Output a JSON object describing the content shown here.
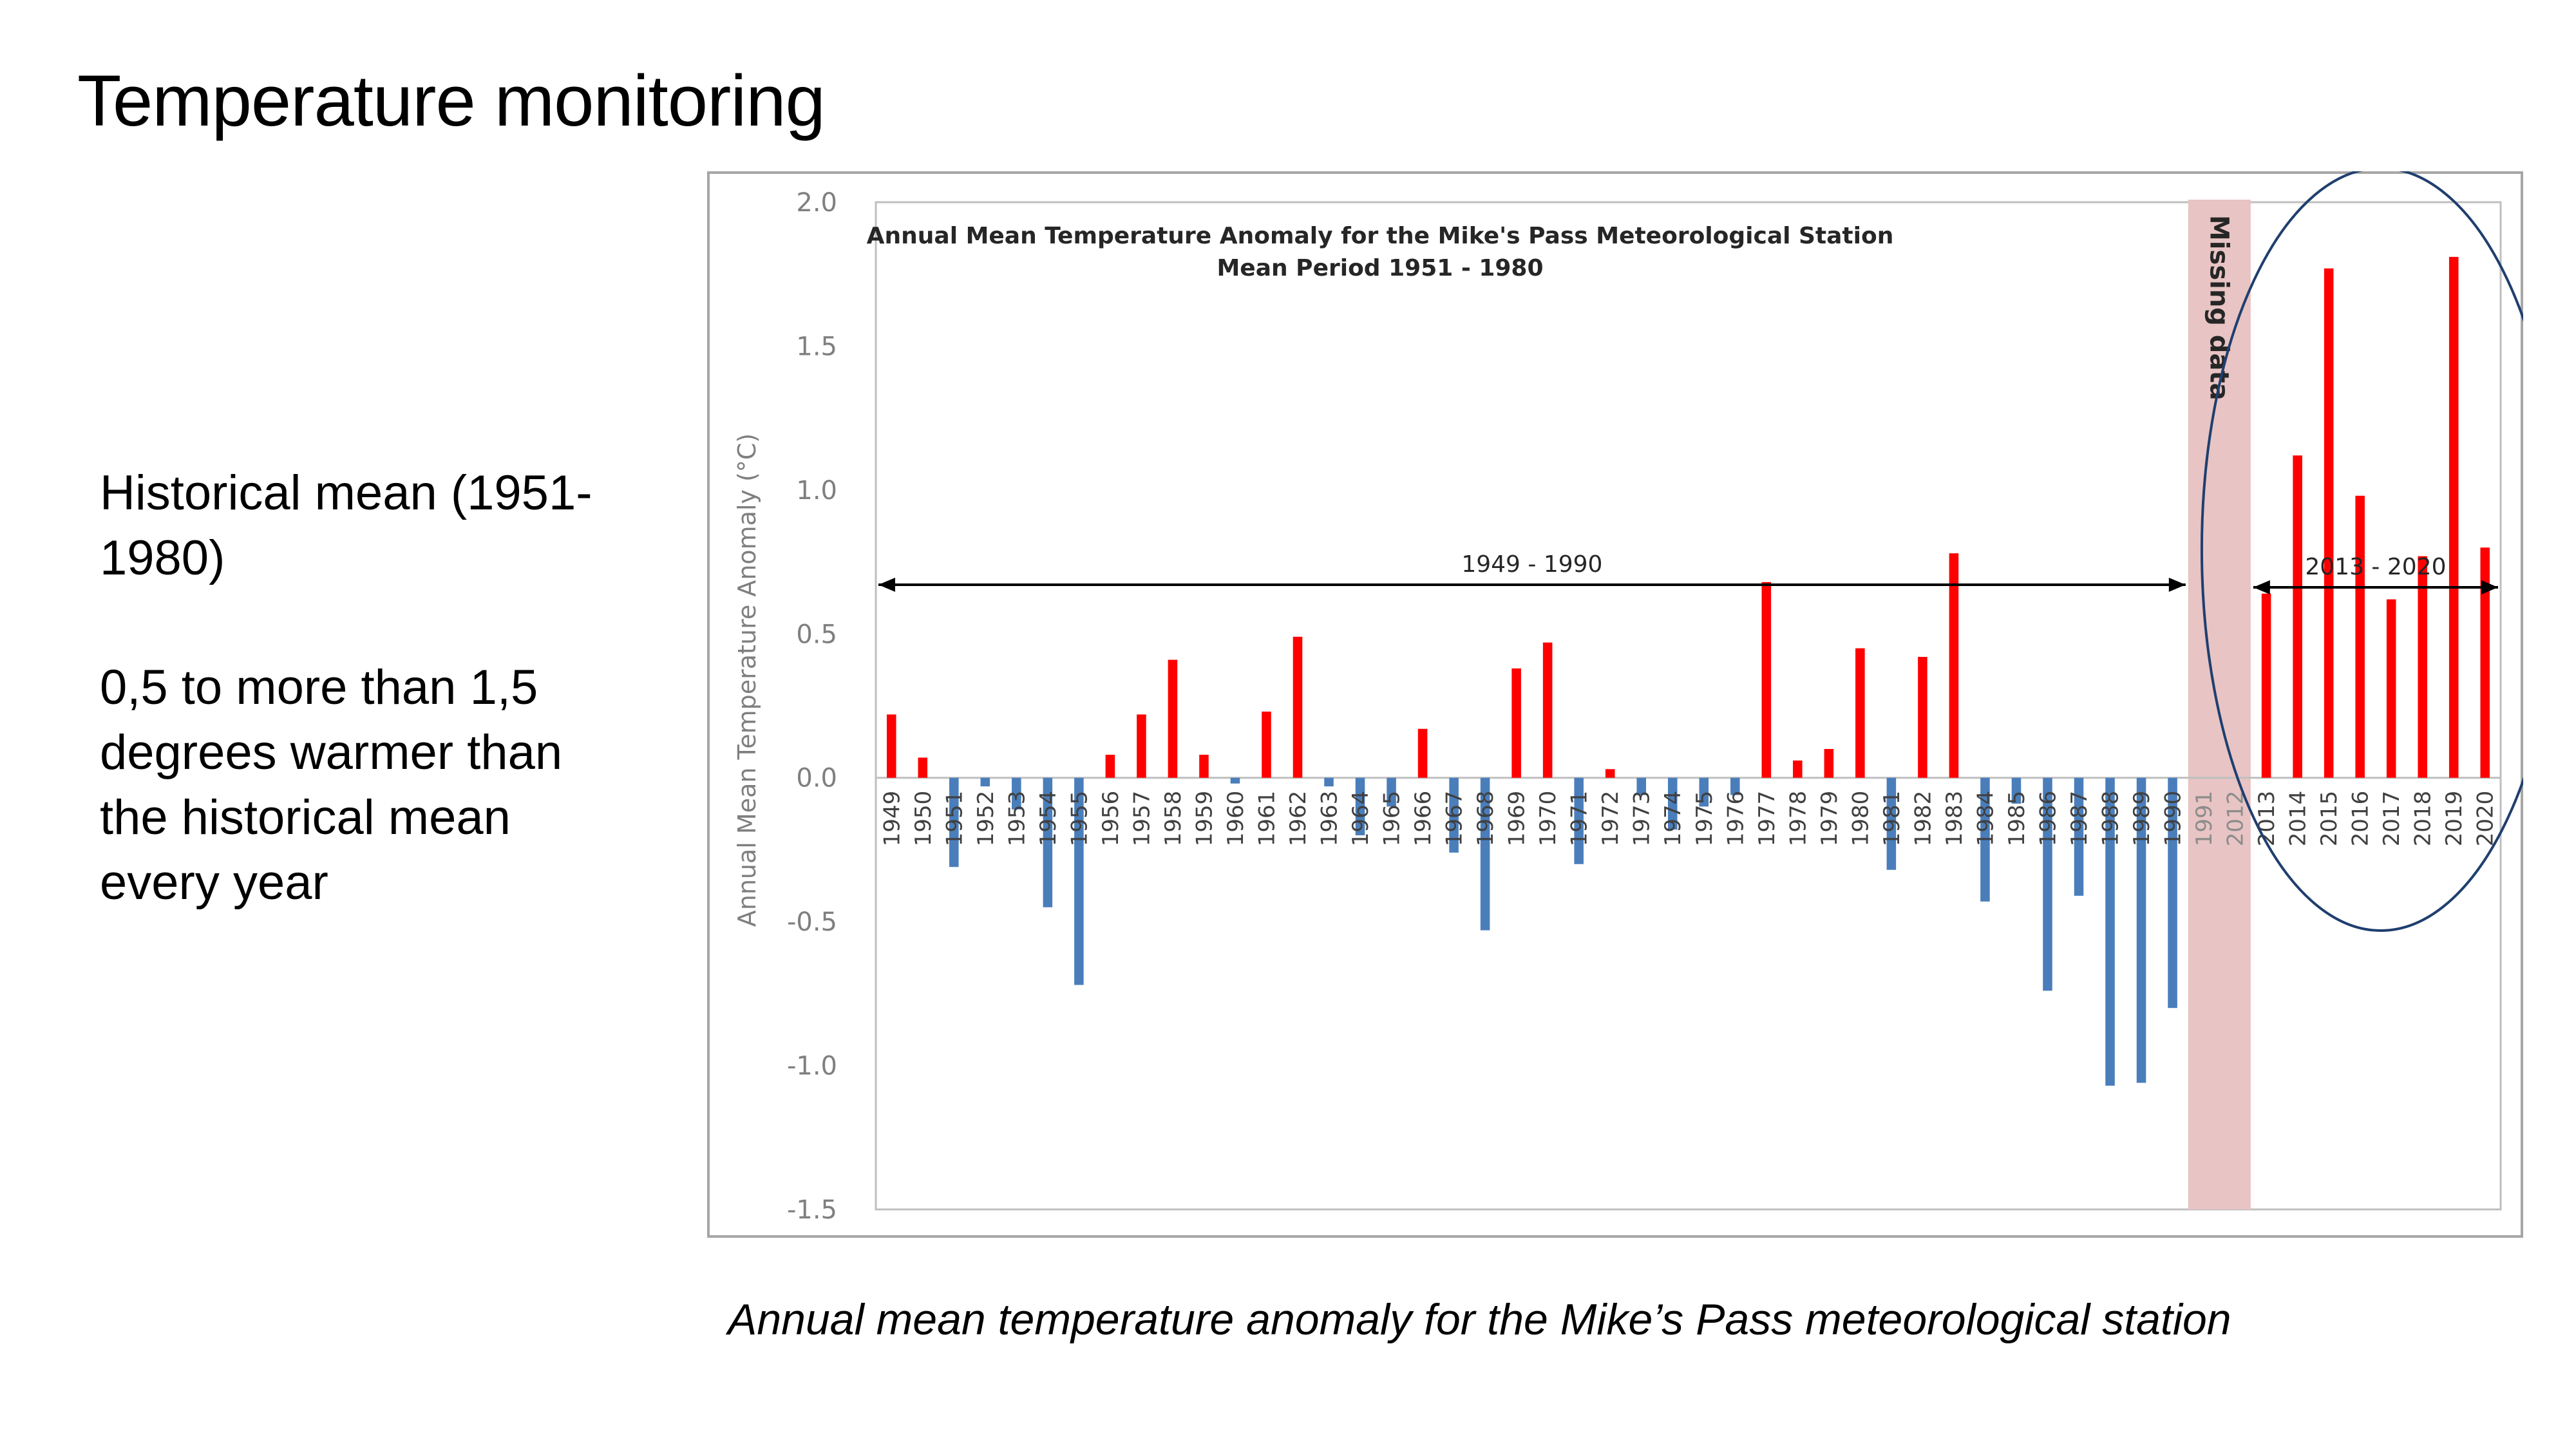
{
  "slide": {
    "title": "Temperature monitoring",
    "bullets": [
      "Historical mean (1951-1980)",
      "0,5 to more than 1,5 degrees warmer than the historical mean every year"
    ],
    "caption": "Annual mean temperature anomaly for the Mike’s Pass meteorological station"
  },
  "colors": {
    "positive": "#ff0000",
    "negative": "#4a7ebb",
    "missing_band": "#e8c4c4",
    "highlight_ellipse": "#1f3f6e",
    "axis_text": "#7f7f7f"
  },
  "chart_data": {
    "type": "bar",
    "title": "Annual Mean Temperature Anomaly for the Mike's Pass Meteorological Station",
    "subtitle": "Mean Period 1951 - 1980",
    "ylabel": "Annual Mean Temperature Anomaly (°C)",
    "xlabel": "",
    "ylim": [
      -1.5,
      2.0
    ],
    "yticks": [
      "2.0",
      "1.5",
      "1.0",
      "0.5",
      "0.0",
      "-0.5",
      "-1.0",
      "-1.5"
    ],
    "grid": false,
    "categories": [
      "1949",
      "1950",
      "1951",
      "1952",
      "1953",
      "1954",
      "1955",
      "1956",
      "1957",
      "1958",
      "1959",
      "1960",
      "1961",
      "1962",
      "1963",
      "1964",
      "1965",
      "1966",
      "1967",
      "1968",
      "1969",
      "1970",
      "1971",
      "1972",
      "1973",
      "1974",
      "1975",
      "1976",
      "1977",
      "1978",
      "1979",
      "1980",
      "1981",
      "1982",
      "1983",
      "1984",
      "1985",
      "1986",
      "1987",
      "1988",
      "1989",
      "1990",
      "1991",
      "2012",
      "2013",
      "2014",
      "2015",
      "2016",
      "2017",
      "2018",
      "2019",
      "2020"
    ],
    "values": [
      0.22,
      0.07,
      -0.31,
      -0.03,
      -0.11,
      -0.45,
      -0.72,
      0.08,
      0.22,
      0.41,
      0.08,
      -0.02,
      0.23,
      0.49,
      -0.03,
      -0.2,
      -0.1,
      0.17,
      -0.26,
      -0.53,
      0.38,
      0.47,
      -0.3,
      0.03,
      -0.06,
      -0.18,
      -0.1,
      -0.06,
      0.68,
      0.06,
      0.1,
      0.45,
      -0.32,
      0.42,
      0.78,
      -0.43,
      -0.09,
      -0.74,
      -0.41,
      -1.07,
      -1.06,
      -0.8,
      null,
      null,
      0.64,
      1.12,
      1.77,
      0.98,
      0.62,
      0.77,
      1.81,
      0.8
    ],
    "annotations": [
      {
        "text": "1949 - 1990",
        "from": "1949",
        "to": "1990"
      },
      {
        "text": "2013 - 2020",
        "from": "2013",
        "to": "2020"
      },
      {
        "text": "Missing data",
        "from": "1991",
        "to": "2012"
      }
    ]
  }
}
